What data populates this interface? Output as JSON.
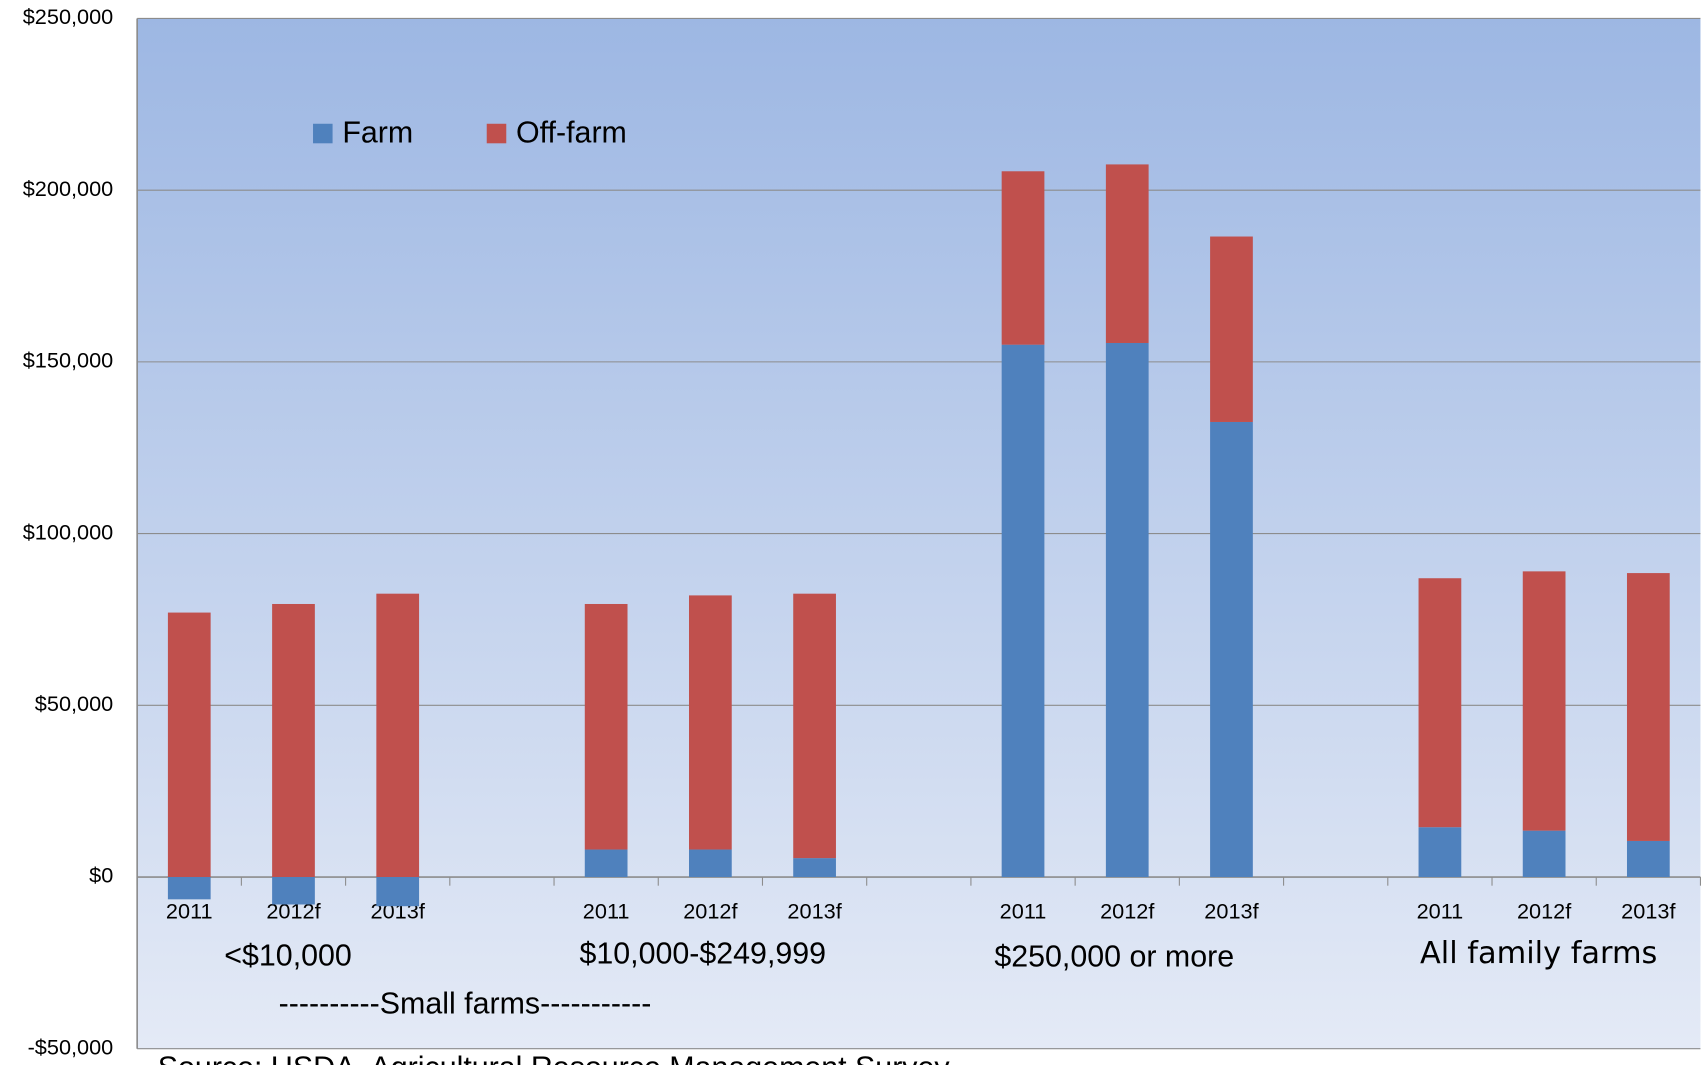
{
  "chart_data": {
    "type": "bar",
    "stacked": true,
    "categories": [
      "2011",
      "2012f",
      "2013f",
      null,
      "2011",
      "2012f",
      "2013f",
      null,
      "2011",
      "2012f",
      "2013f",
      null,
      "2011",
      "2012f",
      "2013f"
    ],
    "series": [
      {
        "name": "Farm",
        "color": "#4f81bd",
        "values": [
          -6500,
          -8000,
          -8500,
          null,
          8000,
          8000,
          5500,
          null,
          155000,
          155500,
          132500,
          null,
          14500,
          13500,
          10500
        ]
      },
      {
        "name": "Off-farm",
        "color": "#c0504d",
        "values": [
          77000,
          79500,
          82500,
          null,
          71500,
          74000,
          77000,
          null,
          50500,
          52000,
          54000,
          null,
          72500,
          75500,
          78000
        ]
      }
    ],
    "ylim": [
      -50000,
      250000
    ],
    "yticks": [
      {
        "value": -50000,
        "label": "-$50,000"
      },
      {
        "value": 0,
        "label": "$0"
      },
      {
        "value": 50000,
        "label": "$50,000"
      },
      {
        "value": 100000,
        "label": "$100,000"
      },
      {
        "value": 150000,
        "label": "$150,000"
      },
      {
        "value": 200000,
        "label": "$200,000"
      },
      {
        "value": 250000,
        "label": "$250,000"
      }
    ],
    "grid": true,
    "legend": "upper left",
    "annotations": [
      "<$10,000",
      "$10,000-$249,999",
      "$250,000 or more",
      "All family farms",
      "----------Small farms-----------",
      "Source: USDA, Agricultural Resource Management Survey"
    ]
  }
}
